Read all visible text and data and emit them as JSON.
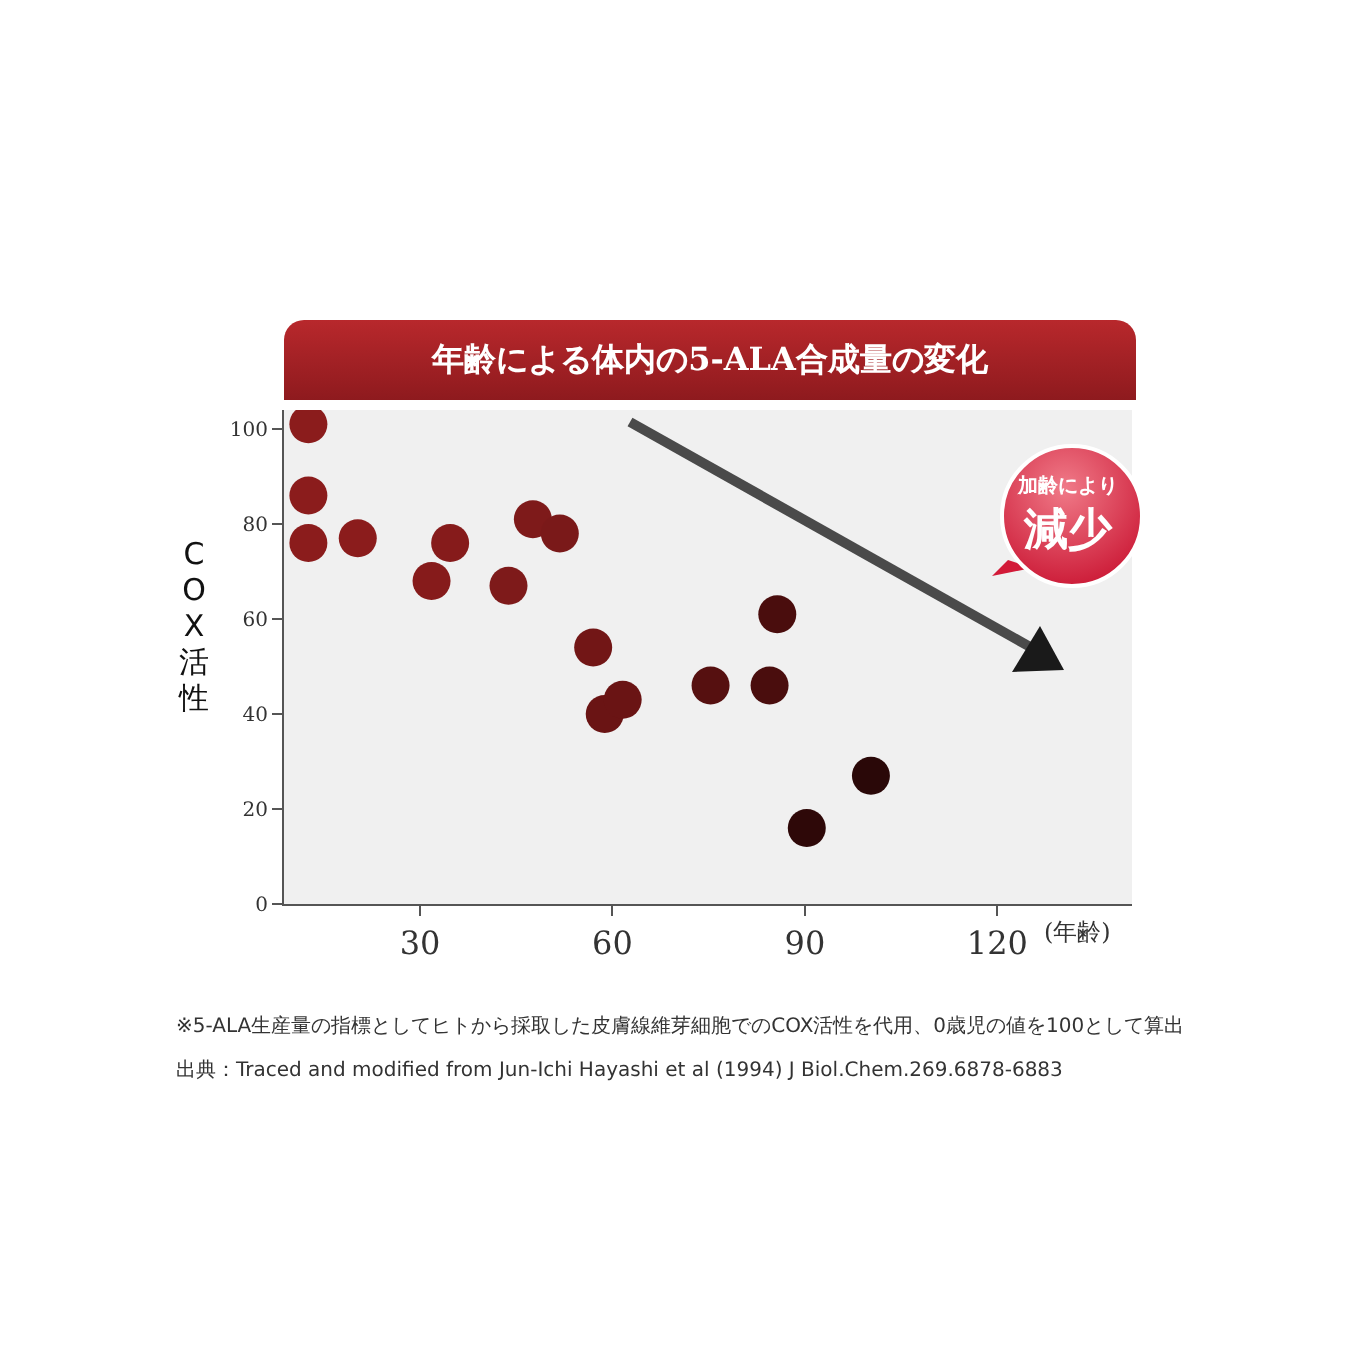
{
  "chart_data": {
    "type": "scatter",
    "title": "年齢による体内の5-ALA合成量の変化",
    "xlabel": "(年齢)",
    "ylabel": "COX活性",
    "x": [
      12.6,
      12.6,
      12.6,
      20.3,
      31.8,
      34.7,
      43.8,
      47.6,
      51.8,
      57,
      58.8,
      61.6,
      75.3,
      84.5,
      85.7,
      90.3,
      100.3
    ],
    "values": [
      101,
      86,
      76,
      77,
      68,
      76,
      67,
      81,
      78,
      54,
      40,
      43,
      46,
      46,
      61,
      16,
      27
    ],
    "colors": [
      "#8b1c1c",
      "#8b1c1c",
      "#8b1c1c",
      "#8b1c1c",
      "#861b1b",
      "#861b1b",
      "#7e1a1a",
      "#7e1a1a",
      "#7a1919",
      "#721616",
      "#6a1414",
      "#6a1414",
      "#561010",
      "#4a0d0d",
      "#4a0d0d",
      "#2e0808",
      "#2a0808"
    ],
    "marker": "circle",
    "grid": false,
    "xlim": [
      8.8,
      141
    ],
    "ylim": [
      0,
      104
    ],
    "xticks": [
      30,
      60,
      90,
      120
    ],
    "yticks": [
      0,
      20,
      40,
      60,
      80,
      100
    ],
    "annotations": [
      "加齢により",
      "減少",
      "※5-ALA生産量の指標としてヒトから採取した皮膚線維芽細胞でのCOX活性を代用、0歳児の値を100として算出",
      "出典：Traced and modified from Jun-Ichi Hayashi et al (1994) J Biol.Chem.269.6878-6883"
    ]
  }
}
